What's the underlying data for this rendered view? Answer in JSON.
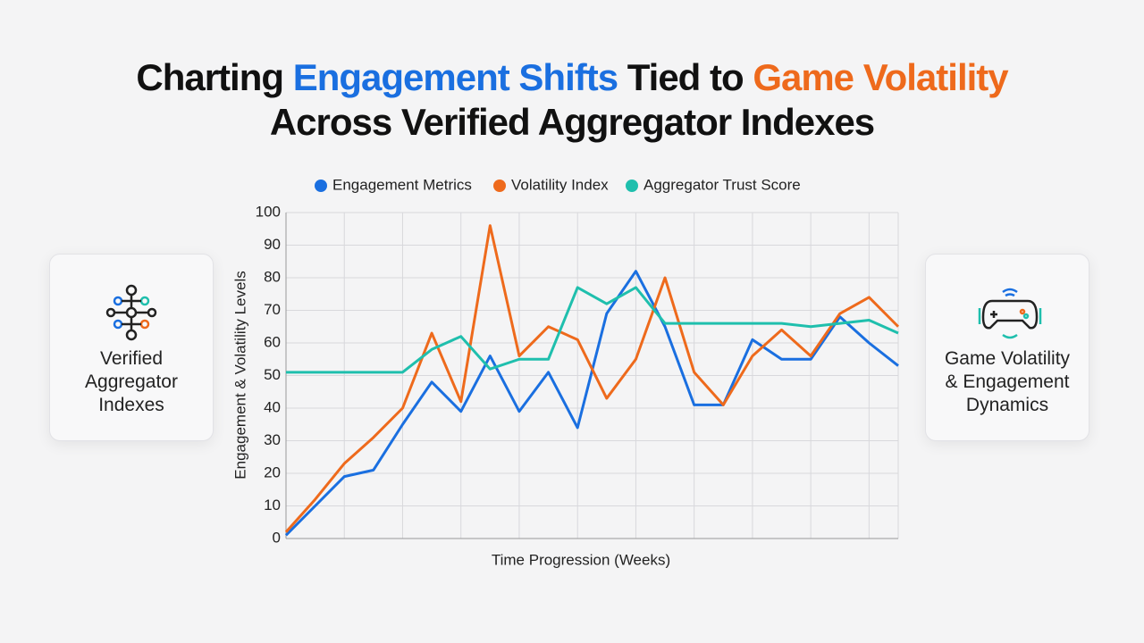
{
  "title_parts": [
    {
      "text": "Charting",
      "color": "#111111"
    },
    {
      "text": "Engagement Shifts",
      "color": "#1a6fe0"
    },
    {
      "text": "Tied to",
      "color": "#111111"
    },
    {
      "text": "Game Volatility",
      "color": "#ee6a1c"
    }
  ],
  "title_line2": "Across Verified Aggregator Indexes",
  "side_cards": [
    "Verified Aggregator Indexes",
    "Game Volatility & Engagement Dynamics"
  ],
  "chart_data": {
    "type": "line",
    "x_label": "Time Progression (Weeks)",
    "y_label": "Engagement & Volatility Levels",
    "categories": [
      null,
      null,
      null,
      null,
      null,
      null,
      null,
      null,
      null,
      null,
      null,
      null,
      null,
      null,
      null,
      null,
      null,
      null,
      null,
      null,
      null,
      null
    ],
    "series": [
      {
        "name": "Engagement Metrics",
        "color": "#1a6fe0",
        "values": [
          1,
          10,
          19,
          21,
          35,
          48,
          39,
          56,
          39,
          51,
          34,
          69,
          82,
          65,
          41,
          41,
          61,
          55,
          55,
          68,
          60,
          53
        ]
      },
      {
        "name": "Volatility Index",
        "color": "#ee6a1c",
        "values": [
          2,
          12,
          23,
          31,
          40,
          63,
          42,
          96,
          56,
          65,
          61,
          43,
          55,
          80,
          51,
          41,
          56,
          64,
          56,
          69,
          74,
          65
        ]
      },
      {
        "name": "Aggregator Trust Score",
        "color": "#1fbfad",
        "values": [
          51,
          51,
          51,
          51,
          51,
          58,
          62,
          52,
          55,
          55,
          77,
          72,
          77,
          66,
          66,
          66,
          66,
          66,
          65,
          66,
          67,
          63
        ]
      }
    ],
    "ylim": [
      0,
      100
    ],
    "yticks": [
      0,
      10,
      20,
      30,
      40,
      50,
      60,
      70,
      80,
      90,
      100
    ],
    "grid": true,
    "legend": "top"
  }
}
